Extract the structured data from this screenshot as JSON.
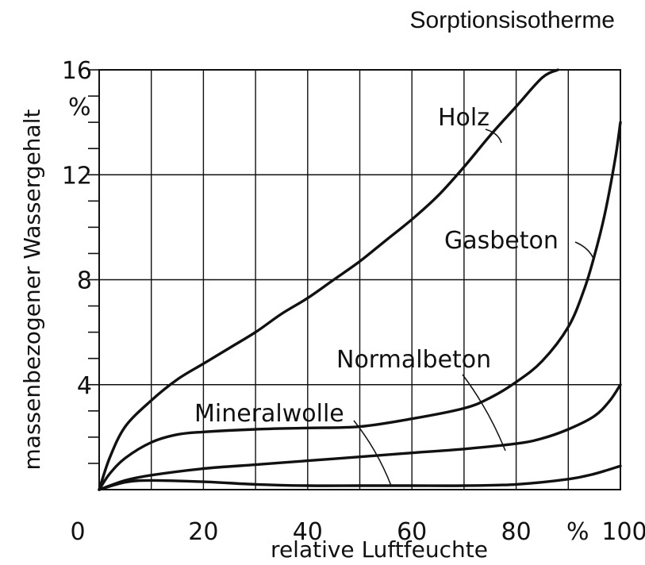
{
  "chart_data": {
    "type": "line",
    "title": "Sorptionsisotherme",
    "xlabel": "relative Luftfeuchte",
    "ylabel": "massenbezogener Wassergehalt",
    "xlim": [
      0,
      100
    ],
    "ylim": [
      0,
      16
    ],
    "x_ticks": [
      "0",
      "20",
      "40",
      "60",
      "80",
      "100"
    ],
    "x_unit_label": "%",
    "y_ticks": [
      "4",
      "8",
      "12",
      "16"
    ],
    "y_unit_label": "%",
    "grid": true,
    "series": [
      {
        "name": "Holz",
        "x": [
          0,
          2,
          5,
          10,
          15,
          20,
          25,
          30,
          35,
          40,
          45,
          50,
          55,
          60,
          65,
          70,
          75,
          80,
          85,
          88
        ],
        "y": [
          0,
          1.2,
          2.4,
          3.4,
          4.2,
          4.8,
          5.4,
          6.0,
          6.7,
          7.3,
          8.0,
          8.7,
          9.5,
          10.3,
          11.2,
          12.3,
          13.5,
          14.6,
          15.7,
          16.0
        ]
      },
      {
        "name": "Gasbeton",
        "x": [
          0,
          2,
          5,
          10,
          15,
          20,
          30,
          40,
          50,
          60,
          70,
          75,
          80,
          85,
          90,
          93,
          95,
          97,
          99,
          100
        ],
        "y": [
          0,
          0.6,
          1.2,
          1.8,
          2.1,
          2.2,
          2.3,
          2.35,
          2.4,
          2.7,
          3.1,
          3.5,
          4.1,
          4.9,
          6.2,
          7.6,
          8.9,
          10.5,
          12.6,
          14.0
        ]
      },
      {
        "name": "Normalbeton",
        "x": [
          0,
          5,
          10,
          20,
          30,
          40,
          50,
          60,
          70,
          80,
          85,
          90,
          95,
          98,
          100
        ],
        "y": [
          0,
          0.35,
          0.55,
          0.8,
          0.95,
          1.1,
          1.25,
          1.4,
          1.55,
          1.75,
          1.95,
          2.3,
          2.8,
          3.4,
          4.0
        ]
      },
      {
        "name": "Mineralwolle",
        "x": [
          0,
          5,
          10,
          20,
          30,
          40,
          50,
          60,
          70,
          80,
          90,
          95,
          100
        ],
        "y": [
          0,
          0.28,
          0.35,
          0.3,
          0.2,
          0.15,
          0.15,
          0.15,
          0.15,
          0.2,
          0.4,
          0.6,
          0.9
        ]
      }
    ],
    "labels": [
      {
        "series": "Holz",
        "text": "Holz"
      },
      {
        "series": "Gasbeton",
        "text": "Gasbeton"
      },
      {
        "series": "Normalbeton",
        "text": "Normalbeton"
      },
      {
        "series": "Mineralwolle",
        "text": "Mineralwolle"
      }
    ]
  }
}
